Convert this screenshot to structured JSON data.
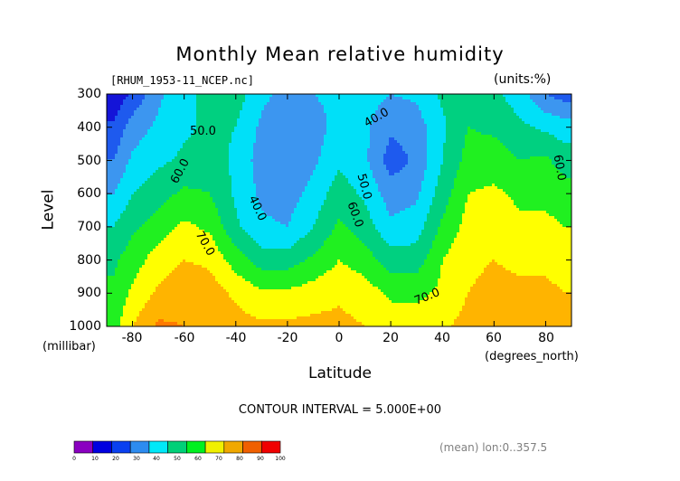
{
  "chart_data": {
    "type": "heatmap",
    "title": "Monthly Mean relative humidity",
    "file_label": "[RHUM_1953-11_NCEP.nc]",
    "units_label": "(units:%)",
    "xlabel": "Latitude",
    "x_unit": "(degrees_north)",
    "ylabel": "Level",
    "y_unit": "(millibar)",
    "x_ticks": [
      "-80",
      "-60",
      "-40",
      "-20",
      "0",
      "20",
      "40",
      "60",
      "80"
    ],
    "y_ticks": [
      "300",
      "400",
      "500",
      "600",
      "700",
      "800",
      "900",
      "1000"
    ],
    "xlim": [
      -90,
      90
    ],
    "ylim": [
      1000,
      300
    ],
    "latitudes": [
      -87.5,
      -80,
      -70,
      -60,
      -50,
      -40,
      -30,
      -20,
      -10,
      0,
      10,
      20,
      30,
      40,
      50,
      60,
      70,
      80,
      87.5
    ],
    "levels": [
      300,
      400,
      500,
      600,
      700,
      800,
      900,
      1000
    ],
    "values": [
      [
        12,
        22,
        38,
        48,
        52,
        55,
        42,
        38,
        40,
        43,
        44,
        40,
        42,
        52,
        56,
        52,
        45,
        30,
        25
      ],
      [
        22,
        35,
        42,
        48,
        52,
        50,
        38,
        32,
        35,
        44,
        42,
        32,
        35,
        48,
        60,
        58,
        52,
        48,
        45
      ],
      [
        30,
        42,
        48,
        52,
        55,
        48,
        35,
        30,
        38,
        48,
        42,
        25,
        32,
        50,
        64,
        65,
        60,
        62,
        55
      ],
      [
        40,
        50,
        56,
        62,
        60,
        48,
        38,
        35,
        44,
        55,
        48,
        35,
        38,
        55,
        70,
        72,
        68,
        68,
        65
      ],
      [
        50,
        58,
        65,
        72,
        68,
        52,
        42,
        40,
        50,
        62,
        55,
        42,
        45,
        62,
        74,
        75,
        72,
        72,
        70
      ],
      [
        58,
        65,
        75,
        80,
        78,
        65,
        55,
        55,
        62,
        70,
        65,
        55,
        55,
        70,
        78,
        80,
        78,
        78,
        76
      ],
      [
        62,
        72,
        82,
        86,
        85,
        78,
        72,
        72,
        75,
        78,
        75,
        68,
        68,
        72,
        80,
        83,
        82,
        82,
        80
      ],
      [
        65,
        80,
        92,
        90,
        86,
        84,
        82,
        82,
        83,
        83,
        80,
        76,
        74,
        78,
        84,
        86,
        85,
        86,
        84
      ]
    ],
    "contour_labels": [
      "50.0",
      "40.0",
      "60.0",
      "70.0",
      "40.0",
      "50.0",
      "60.0",
      "70.0",
      "60.0"
    ],
    "contour_interval_label": "CONTOUR INTERVAL = 5.000E+00",
    "annotation": "(mean) lon:0..357.5",
    "colorbar": {
      "ticks": [
        "0",
        "10",
        "20",
        "30",
        "40",
        "50",
        "60",
        "70",
        "80",
        "90",
        "100"
      ],
      "colors": [
        "#8a00c0",
        "#0000e0",
        "#0a40f0",
        "#2d8cf0",
        "#00e8f8",
        "#00d078",
        "#00f020",
        "#f0f000",
        "#f0a800",
        "#f06000",
        "#f00000"
      ]
    },
    "colors": {
      "bands": [
        "#7a00a0",
        "#1414d8",
        "#1e5aee",
        "#3c96f0",
        "#00e0f8",
        "#00d080",
        "#20f020",
        "#ffff00",
        "#ffb400",
        "#ff7a00",
        "#ff4000",
        "#ff0000"
      ]
    }
  }
}
